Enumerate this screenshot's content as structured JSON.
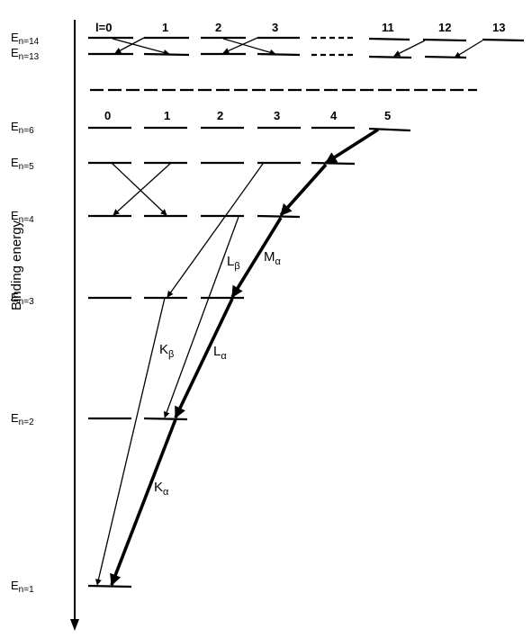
{
  "y_axis_label": "Binding energy",
  "energy_levels": [
    {
      "id": "n14",
      "base": "E",
      "sub": "n=14"
    },
    {
      "id": "n13",
      "base": "E",
      "sub": "n=13"
    },
    {
      "id": "n6",
      "base": "E",
      "sub": "n=6"
    },
    {
      "id": "n5",
      "base": "E",
      "sub": "n=5"
    },
    {
      "id": "n4",
      "base": "E",
      "sub": "n=4"
    },
    {
      "id": "n3",
      "base": "E",
      "sub": "n=3"
    },
    {
      "id": "n2",
      "base": "E",
      "sub": "n=2"
    },
    {
      "id": "n1",
      "base": "E",
      "sub": "n=1"
    }
  ],
  "top_l_labels": [
    "l=0",
    "1",
    "2",
    "3",
    "11",
    "12",
    "13"
  ],
  "mid_l_labels": [
    "0",
    "1",
    "2",
    "3",
    "4",
    "5"
  ],
  "transitions": [
    {
      "id": "K-alpha",
      "base": "K",
      "sub": "α"
    },
    {
      "id": "K-beta",
      "base": "K",
      "sub": "β"
    },
    {
      "id": "L-alpha",
      "base": "L",
      "sub": "α"
    },
    {
      "id": "L-beta",
      "base": "L",
      "sub": "β"
    },
    {
      "id": "M-alpha",
      "base": "M",
      "sub": "α"
    }
  ]
}
